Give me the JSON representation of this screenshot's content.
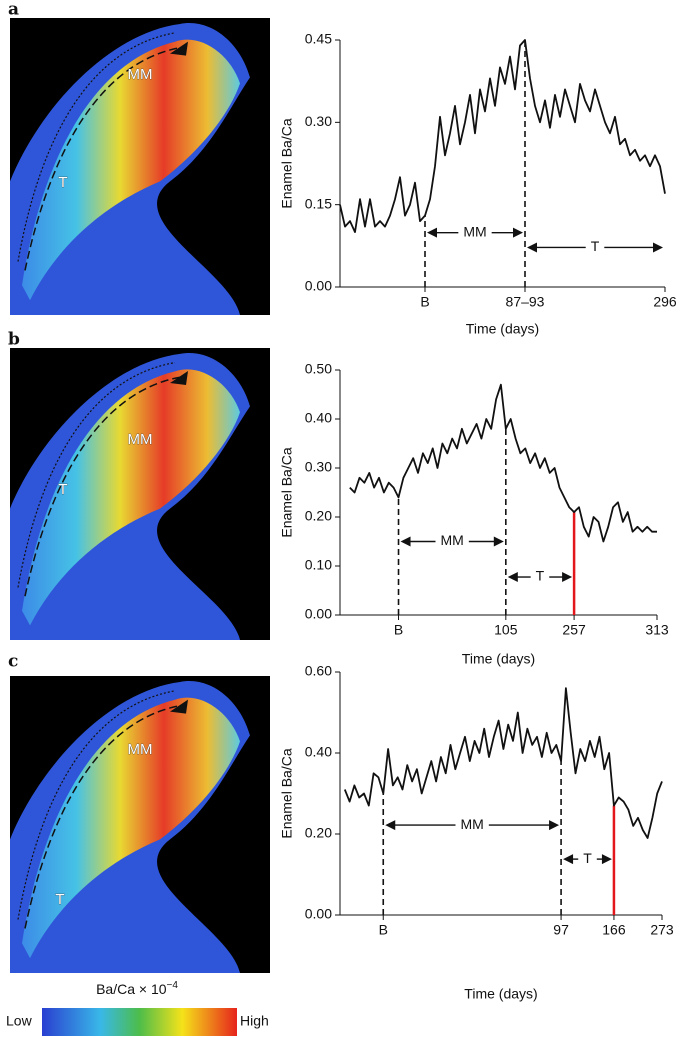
{
  "panel_labels": [
    "a",
    "b",
    "c"
  ],
  "image_labels": [
    [
      "MM",
      "T"
    ],
    [
      "MM",
      "T"
    ],
    [
      "MM",
      "T"
    ]
  ],
  "colorbar": {
    "title": "Ba/Ca × 10",
    "superscript": "−4",
    "low": "Low",
    "high": "High"
  },
  "chart_data": [
    {
      "type": "line",
      "x_label": "Time (days)",
      "y_label": "Enamel Ba/Ca",
      "color": "#111111",
      "values": [
        0.15,
        0.11,
        0.12,
        0.1,
        0.16,
        0.11,
        0.16,
        0.11,
        0.12,
        0.11,
        0.13,
        0.16,
        0.2,
        0.13,
        0.15,
        0.19,
        0.12,
        0.13,
        0.16,
        0.22,
        0.31,
        0.24,
        0.28,
        0.33,
        0.26,
        0.3,
        0.35,
        0.28,
        0.36,
        0.32,
        0.38,
        0.33,
        0.4,
        0.37,
        0.42,
        0.36,
        0.44,
        0.45,
        0.38,
        0.33,
        0.3,
        0.34,
        0.29,
        0.35,
        0.31,
        0.36,
        0.33,
        0.3,
        0.37,
        0.34,
        0.32,
        0.36,
        0.33,
        0.3,
        0.28,
        0.31,
        0.26,
        0.27,
        0.24,
        0.25,
        0.23,
        0.24,
        0.22,
        0.24,
        0.22,
        0.17
      ],
      "xlim": [
        0,
        65
      ],
      "ylim": [
        0,
        0.45
      ],
      "yticks": [
        {
          "value": 0,
          "label": "0.00"
        },
        {
          "value": 0.15,
          "label": "0.15"
        },
        {
          "value": 0.3,
          "label": "0.30"
        },
        {
          "value": 0.45,
          "label": "0.45"
        }
      ],
      "xticks": [
        {
          "value": 17,
          "label": "B"
        },
        {
          "value": 37,
          "label": "87–93"
        },
        {
          "value": 65,
          "label": "296"
        }
      ],
      "marker_lines": [
        {
          "x": 17,
          "color": "#111111",
          "dashed": true
        },
        {
          "x": 37,
          "color": "#111111",
          "dashed": true
        }
      ],
      "annotations": [
        {
          "text": "MM",
          "x": [
            17,
            37
          ]
        },
        {
          "text": "T",
          "x": [
            37,
            65
          ]
        }
      ]
    },
    {
      "type": "line",
      "x_label": "Time (days)",
      "y_label": "Enamel Ba/Ca",
      "color": "#111111",
      "values": [
        0.26,
        0.25,
        0.28,
        0.27,
        0.29,
        0.26,
        0.28,
        0.25,
        0.27,
        0.26,
        0.24,
        0.28,
        0.3,
        0.32,
        0.29,
        0.33,
        0.31,
        0.34,
        0.3,
        0.35,
        0.33,
        0.36,
        0.34,
        0.38,
        0.35,
        0.37,
        0.39,
        0.36,
        0.4,
        0.38,
        0.44,
        0.47,
        0.38,
        0.4,
        0.36,
        0.33,
        0.34,
        0.31,
        0.33,
        0.3,
        0.32,
        0.29,
        0.3,
        0.26,
        0.24,
        0.22,
        0.21,
        0.22,
        0.18,
        0.16,
        0.2,
        0.19,
        0.15,
        0.18,
        0.22,
        0.23,
        0.19,
        0.21,
        0.17,
        0.18,
        0.17,
        0.18,
        0.17,
        0.17
      ],
      "xlim": [
        -2,
        63
      ],
      "ylim": [
        0,
        0.5
      ],
      "yticks": [
        {
          "value": 0,
          "label": "0.00"
        },
        {
          "value": 0.1,
          "label": "0.10"
        },
        {
          "value": 0.2,
          "label": "0.20"
        },
        {
          "value": 0.3,
          "label": "0.30"
        },
        {
          "value": 0.4,
          "label": "0.40"
        },
        {
          "value": 0.5,
          "label": "0.50"
        }
      ],
      "xticks": [
        {
          "value": 10,
          "label": "B"
        },
        {
          "value": 32,
          "label": "105"
        },
        {
          "value": 46,
          "label": "257"
        },
        {
          "value": 63,
          "label": "313"
        }
      ],
      "marker_lines": [
        {
          "x": 10,
          "color": "#111111",
          "dashed": true
        },
        {
          "x": 32,
          "color": "#111111",
          "dashed": true
        },
        {
          "x": 46,
          "color": "#e3171b",
          "dashed": false
        }
      ],
      "annotations": [
        {
          "text": "MM",
          "x": [
            10,
            32
          ]
        },
        {
          "text": "T",
          "x": [
            32,
            46
          ]
        }
      ]
    },
    {
      "type": "line",
      "x_label": "Time (days)",
      "y_label": "Enamel Ba/Ca",
      "color": "#111111",
      "values": [
        0.31,
        0.28,
        0.32,
        0.29,
        0.3,
        0.27,
        0.35,
        0.34,
        0.3,
        0.41,
        0.32,
        0.34,
        0.31,
        0.37,
        0.33,
        0.36,
        0.3,
        0.34,
        0.38,
        0.33,
        0.39,
        0.35,
        0.42,
        0.36,
        0.4,
        0.44,
        0.38,
        0.43,
        0.4,
        0.46,
        0.39,
        0.44,
        0.48,
        0.41,
        0.47,
        0.43,
        0.5,
        0.4,
        0.46,
        0.42,
        0.44,
        0.39,
        0.45,
        0.4,
        0.42,
        0.38,
        0.56,
        0.45,
        0.35,
        0.41,
        0.38,
        0.43,
        0.39,
        0.44,
        0.36,
        0.4,
        0.27,
        0.29,
        0.28,
        0.26,
        0.22,
        0.24,
        0.21,
        0.19,
        0.24,
        0.3,
        0.33
      ],
      "xlim": [
        -1,
        66
      ],
      "ylim": [
        0,
        0.6
      ],
      "yticks": [
        {
          "value": 0,
          "label": "0.00"
        },
        {
          "value": 0.2,
          "label": "0.20"
        },
        {
          "value": 0.4,
          "label": "0.40"
        },
        {
          "value": 0.6,
          "label": "0.60"
        }
      ],
      "xticks": [
        {
          "value": 8,
          "label": "B"
        },
        {
          "value": 45,
          "label": "97"
        },
        {
          "value": 56,
          "label": "166"
        },
        {
          "value": 66,
          "label": "273"
        }
      ],
      "marker_lines": [
        {
          "x": 8,
          "color": "#111111",
          "dashed": true
        },
        {
          "x": 45,
          "color": "#111111",
          "dashed": true
        },
        {
          "x": 56,
          "color": "#e3171b",
          "dashed": false
        }
      ],
      "annotations": [
        {
          "text": "MM",
          "x": [
            8,
            45
          ]
        },
        {
          "text": "T",
          "x": [
            45,
            56
          ]
        }
      ]
    }
  ]
}
